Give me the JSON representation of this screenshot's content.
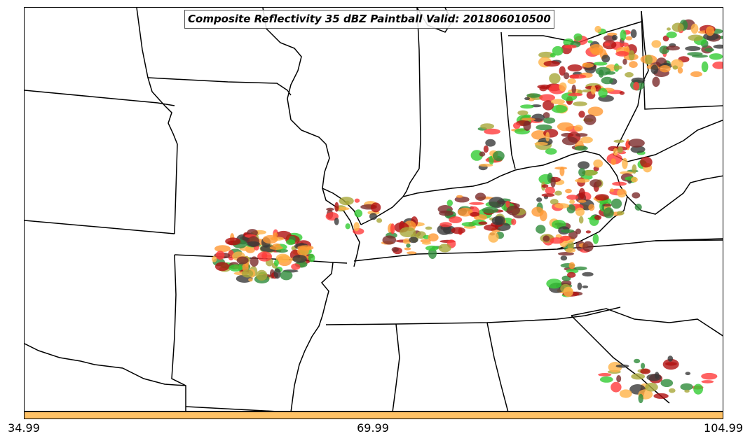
{
  "title": "Composite Reflectivity 35 dBZ Paintball Valid: 201806010500",
  "colorbar": {
    "color": "#ffc266",
    "tick_labels": [
      "34.99",
      "69.99",
      "104.99"
    ]
  },
  "colors": {
    "red": "#ff3b3b",
    "orange": "#ff9933",
    "light_orange": "#ffb347",
    "green_bright": "#33cc33",
    "green_dark": "#2e8b3a",
    "olive": "#a8a83a",
    "maroon": "#7a2a2a",
    "dark_gray": "#3a3a3a",
    "dark_red": "#b01010"
  }
}
